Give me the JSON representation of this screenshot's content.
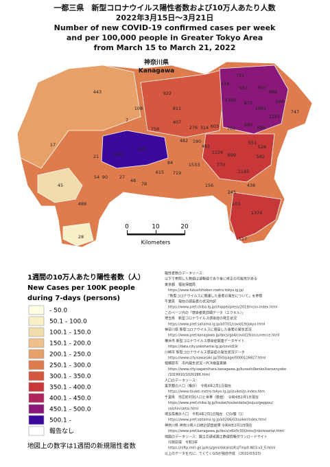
{
  "header": {
    "title_lines": [
      "一都三県　新型コロナウイルス陽性者数および10万人あたり人数",
      "2022年3月15日～3月21日",
      "Number of new COVID-19 confirmed cases per week",
      "and per 100,000 people in Greater Tokyo Area",
      "from March 15 to March 21, 2022"
    ]
  },
  "map": {
    "region_label": [
      "神奈川県",
      "Kanagawa"
    ],
    "labels": [
      731,
      434,
      933,
      825,
      886,
      1306,
      873,
      598,
      922,
      443,
      1891,
      747,
      811,
      108,
      1161,
      407,
      276,
      314,
      603,
      783,
      940,
      686,
      7,
      758,
      482,
      190,
      461,
      1126,
      551,
      526,
      842,
      1040,
      17,
      21,
      84,
      1533,
      770,
      699,
      582,
      615,
      719,
      54,
      90,
      27,
      78,
      48,
      45,
      1145,
      156,
      245,
      438,
      488,
      103,
      1374,
      28,
      117
    ],
    "scale": {
      "ticks": [
        0,
        10,
        20
      ],
      "unit": "Kilometers"
    }
  },
  "legend": {
    "title_lines": [
      "1週間の10万人あたり陽性者数（人）",
      "New Cases per 100K people",
      "during 7-days (persons)"
    ],
    "items": [
      {
        "label": "- 50.0",
        "color": "#fffde2"
      },
      {
        "label": "50.1 - 100.0",
        "color": "#f7efc6"
      },
      {
        "label": "100.1 - 150.0",
        "color": "#f0dcaa"
      },
      {
        "label": "150.1 - 200.0",
        "color": "#eec08a"
      },
      {
        "label": "200.1 - 250.0",
        "color": "#e7a068"
      },
      {
        "label": "250.1 - 300.0",
        "color": "#de7c4e"
      },
      {
        "label": "300.1 - 350.0",
        "color": "#d5573f"
      },
      {
        "label": "350.1 - 400.0",
        "color": "#c93838"
      },
      {
        "label": "400.1 - 450.0",
        "color": "#b0245c"
      },
      {
        "label": "450.1 - 500.0",
        "color": "#8a1878"
      },
      {
        "label": "500.1 -",
        "color": "#3b0a9c"
      },
      {
        "label": "報告なし",
        "color": "#ffffff"
      }
    ],
    "footer": "地図上の数字は1週間の新規陽性者数"
  },
  "sources": [
    "陽性者数のデータソース：",
    "以下で参照した数値は速報値であり後に修正の可能性がある",
    "東京都　福祉保健局",
    "　https://www.fukushihoken.metro.tokyo.lg.jp/",
    "　「新型コロナウイルスに関連した患者の発生について」を参照",
    "千葉県　現在の感染者の状況内訳",
    "　https://www.pref.chiba.lg.jp/shippei/press/2019/ncov-index.html",
    "このページ内の「感染者数詳細データ（エクセル）」",
    "埼玉県　新型コロナウイルス感染症の発生状況",
    "　https://www.pref.saitama.lg.jp/a0701/covid19/jokyo.html",
    "神奈川県 新型コロナウイルスに感染した患者の発生状況",
    "　https://www.pref.kanagawa.jp/docs/ga4/covid19/occurrence.html",
    "横浜市 新型コロナウイルス感染症関連データサイト",
    "　https://data.city.yokohama.lg.jp/covid19/",
    "川崎市 新型コロナウイルス感染症の発生状況データ",
    "　https://www.city.kawasaki.jp/350/page/0000116827.html",
    "相模原市　市内発生状況・PCR検査実績",
    "　https://www.city.sagamihara.kanagawa.jp/kurashi/kenko/kansenyobo",
    "　/1019910/1020286.html",
    "人口のデータソース：",
    "東京都の人口（推計）　令和4年2月1日現在",
    "　https://www.toukei.metro.tokyo.lg.jp/jsuikei/js-index.htm",
    "千葉県　市区町村別人口と世帯（数値）　令和4年2月1日現在",
    "　https://www.pref.chiba.lg.jp/toukei/toukeidata/joujuu/geppou/",
    "　saishin/setai.html",
    "埼玉県推計人口　令和4年2月1日現在　CSV版（1）",
    "　https://www.pref.saitama.lg.jp/a0206/03suikei/index.html",
    "神奈川県 神奈川県人口統計調査結果 令和4年2月1日現在",
    "　https://www.pref.kanagawa.jp/docs/x6z/tc30/jinko/jinkotoseitai.html",
    "地図のデータソース：国土交通省国土数値情報ダウンロードサイト",
    "　行政区域　令和3年",
    "　https://nlftp.mlit.go.jp/ksj/gml/datalist/KsjTmplt-N03-v3_0.html",
    "以上のデータを元に、てくてくGISが独自作成　(2022/03/23)"
  ]
}
